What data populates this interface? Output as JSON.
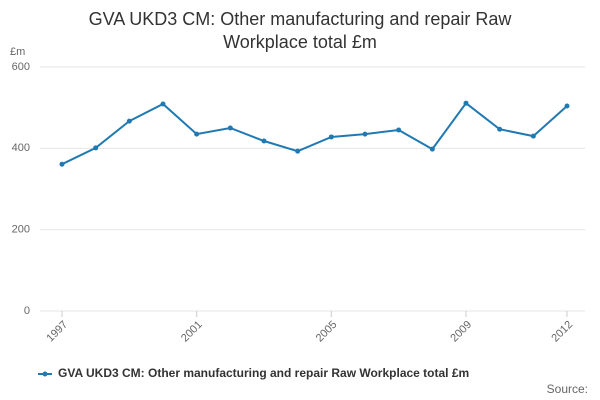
{
  "chart_data": {
    "type": "line",
    "title": "GVA UKD3 CM: Other manufacturing and repair Raw Workplace total £m",
    "y_unit": "£m",
    "source": "Source:",
    "x": [
      1997,
      1998,
      1999,
      2000,
      2001,
      2002,
      2003,
      2004,
      2005,
      2006,
      2007,
      2008,
      2009,
      2010,
      2011,
      2012
    ],
    "xlim": [
      1997,
      2012
    ],
    "xticks": [
      1997,
      2001,
      2005,
      2009,
      2012
    ],
    "ylim": [
      0,
      600
    ],
    "yticks": [
      0,
      200,
      400,
      600
    ],
    "grid": true,
    "series": [
      {
        "name": "GVA UKD3 CM: Other manufacturing and repair Raw Workplace total £m",
        "color": "#1f7ab3",
        "values": [
          361,
          401,
          467,
          509,
          435,
          450,
          418,
          393,
          428,
          435,
          445,
          398,
          511,
          447,
          430,
          504
        ]
      }
    ]
  }
}
